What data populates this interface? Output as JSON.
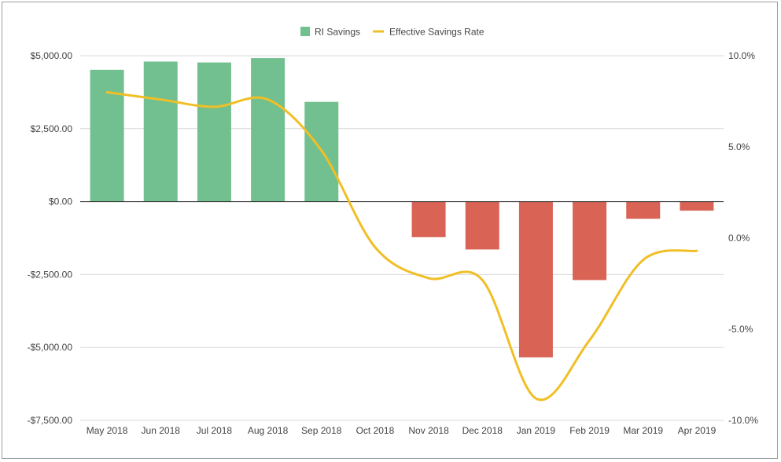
{
  "chart_data": {
    "type": "bar",
    "title": "",
    "legend_position": "top",
    "grid": true,
    "categories": [
      "May 2018",
      "Jun 2018",
      "Jul 2018",
      "Aug 2018",
      "Sep 2018",
      "Oct 2018",
      "Nov 2018",
      "Dec 2018",
      "Jan 2019",
      "Feb 2019",
      "Mar 2019",
      "Apr 2019"
    ],
    "series": [
      {
        "name": "RI Savings",
        "kind": "bar",
        "axis": "left",
        "values": [
          4520,
          4800,
          4770,
          4920,
          3420,
          0,
          -1220,
          -1640,
          -5340,
          -2690,
          -590,
          -310
        ],
        "positive_color": "#72c08f",
        "negative_color": "#d96354"
      },
      {
        "name": "Effective Savings Rate",
        "kind": "line",
        "axis": "right",
        "values": [
          8.0,
          7.6,
          7.2,
          7.6,
          4.8,
          -0.5,
          -2.2,
          -2.3,
          -8.8,
          -5.6,
          -1.2,
          -0.7
        ],
        "color": "#f0bf26"
      }
    ],
    "y_left": {
      "ylim": [
        -7500,
        5000
      ],
      "ticks": [
        5000,
        2500,
        0,
        -2500,
        -5000,
        -7500
      ],
      "tick_labels": [
        "$5,000.00",
        "$2,500.00",
        "$0.00",
        "-$2,500.00",
        "-$5,000.00",
        "-$7,500.00"
      ]
    },
    "y_right": {
      "ylim": [
        -10,
        10
      ],
      "ticks": [
        10,
        5,
        0,
        -5,
        -10
      ],
      "tick_labels": [
        "10.0%",
        "5.0%",
        "0.0%",
        "-5.0%",
        "-10.0%"
      ]
    }
  }
}
